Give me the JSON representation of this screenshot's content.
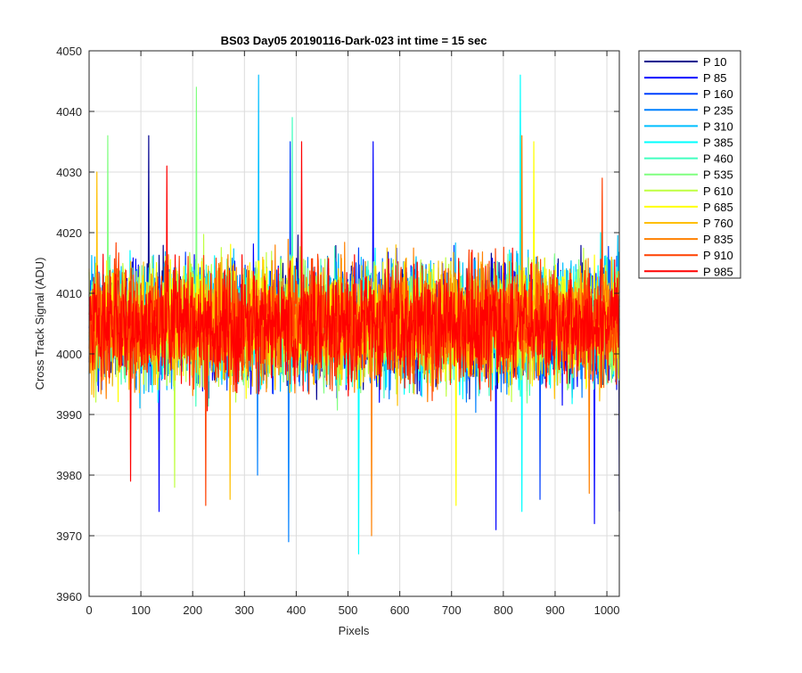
{
  "chart_data": {
    "type": "line",
    "title": "BS03 Day05 20190116-Dark-023 int time = 15 sec",
    "xlabel": "Pixels",
    "ylabel": "Cross Track Signal (ADU)",
    "xlim": [
      0,
      1024
    ],
    "ylim": [
      3960,
      4050
    ],
    "xticks": [
      0,
      100,
      200,
      300,
      400,
      500,
      600,
      700,
      800,
      900,
      1000
    ],
    "yticks": [
      3960,
      3970,
      3980,
      3990,
      4000,
      4010,
      4020,
      4030,
      4040,
      4050
    ],
    "grid": true,
    "legend_position": "outside-top-right",
    "noise": {
      "center": 4005,
      "spread": 8,
      "n_points": 1024
    },
    "series": [
      {
        "name": "P 10",
        "color": "#00008f",
        "extremes": [
          {
            "x": 115,
            "y": 4036
          },
          {
            "x": 1024,
            "y": 3974
          }
        ]
      },
      {
        "name": "P 85",
        "color": "#0000ff",
        "extremes": [
          {
            "x": 135,
            "y": 3974
          },
          {
            "x": 548,
            "y": 4035
          },
          {
            "x": 785,
            "y": 3971
          },
          {
            "x": 975,
            "y": 3972
          }
        ]
      },
      {
        "name": "P 160",
        "color": "#0040ff",
        "extremes": [
          {
            "x": 388,
            "y": 4035
          },
          {
            "x": 870,
            "y": 3976
          }
        ]
      },
      {
        "name": "P 235",
        "color": "#0080ff",
        "extremes": [
          {
            "x": 385,
            "y": 3969
          },
          {
            "x": 325,
            "y": 3980
          }
        ]
      },
      {
        "name": "P 310",
        "color": "#00bfff",
        "extremes": [
          {
            "x": 327,
            "y": 4046
          },
          {
            "x": 832,
            "y": 4040
          }
        ]
      },
      {
        "name": "P 385",
        "color": "#00ffff",
        "extremes": [
          {
            "x": 520,
            "y": 3967
          },
          {
            "x": 832,
            "y": 4046
          },
          {
            "x": 835,
            "y": 3974
          }
        ]
      },
      {
        "name": "P 460",
        "color": "#40ffbf",
        "extremes": [
          {
            "x": 392,
            "y": 4039
          }
        ]
      },
      {
        "name": "P 535",
        "color": "#80ff80",
        "extremes": [
          {
            "x": 36,
            "y": 4036
          },
          {
            "x": 207,
            "y": 4044
          }
        ]
      },
      {
        "name": "P 610",
        "color": "#bfff40",
        "extremes": [
          {
            "x": 165,
            "y": 3978
          }
        ]
      },
      {
        "name": "P 685",
        "color": "#ffff00",
        "extremes": [
          {
            "x": 708,
            "y": 3975
          },
          {
            "x": 858,
            "y": 4035
          }
        ]
      },
      {
        "name": "P 760",
        "color": "#ffbf00",
        "extremes": [
          {
            "x": 15,
            "y": 4030
          },
          {
            "x": 272,
            "y": 3976
          }
        ]
      },
      {
        "name": "P 835",
        "color": "#ff8000",
        "extremes": [
          {
            "x": 545,
            "y": 3970
          },
          {
            "x": 835,
            "y": 4036
          },
          {
            "x": 965,
            "y": 3977
          }
        ]
      },
      {
        "name": "P 910",
        "color": "#ff4000",
        "extremes": [
          {
            "x": 225,
            "y": 3975
          },
          {
            "x": 990,
            "y": 4029
          }
        ]
      },
      {
        "name": "P 985",
        "color": "#ff0000",
        "extremes": [
          {
            "x": 150,
            "y": 4031
          },
          {
            "x": 410,
            "y": 4035
          },
          {
            "x": 80,
            "y": 3979
          }
        ]
      }
    ]
  }
}
